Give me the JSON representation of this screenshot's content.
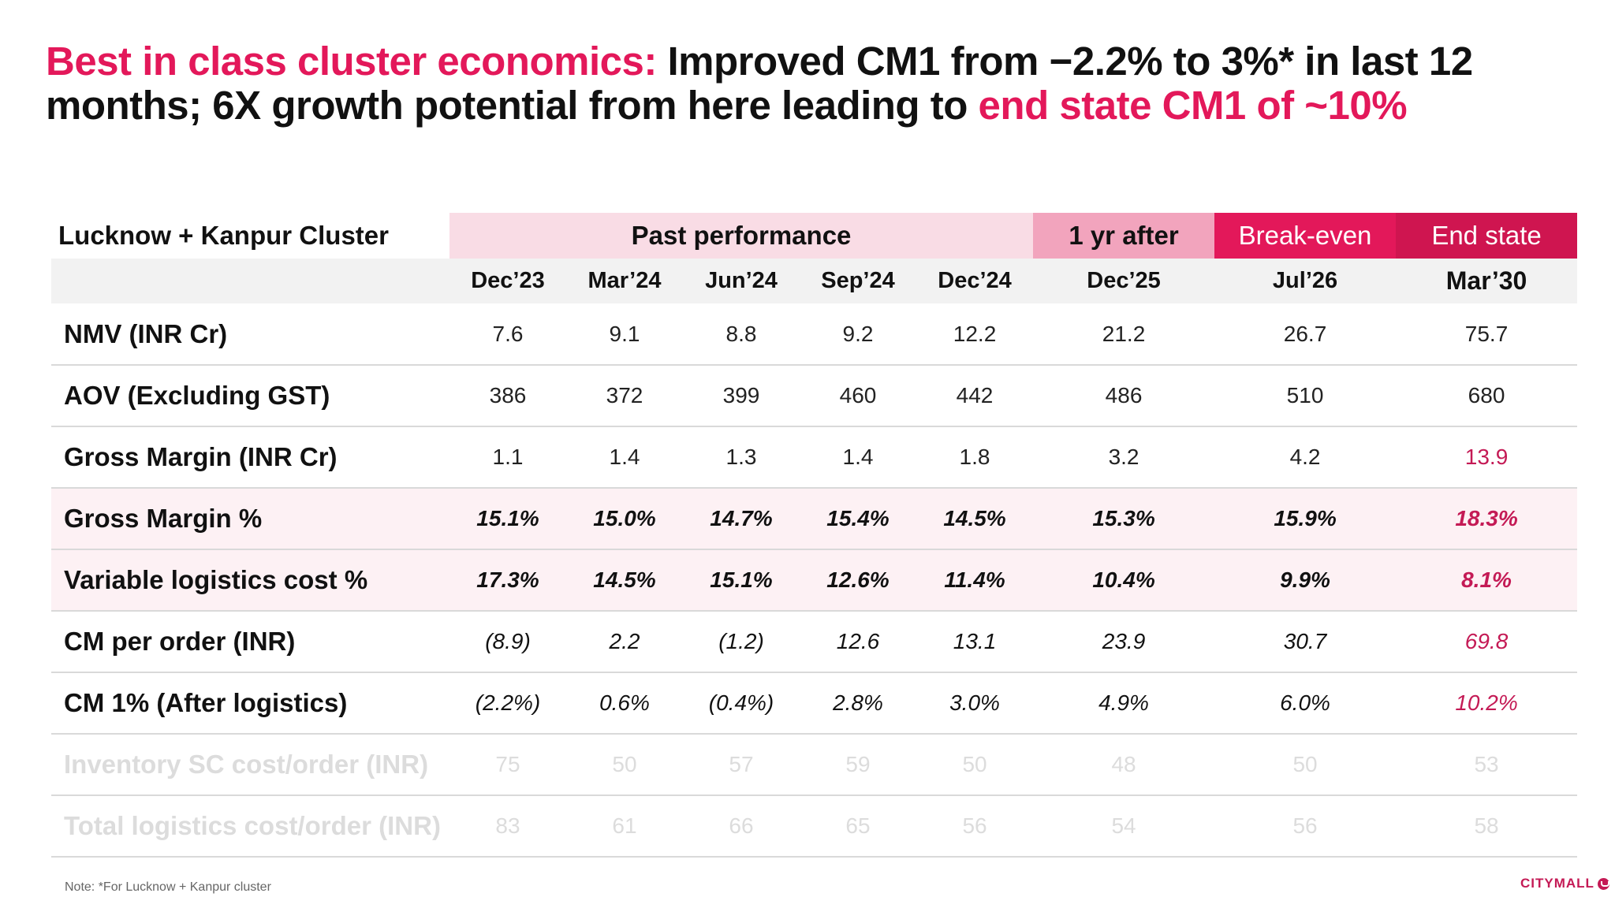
{
  "title": {
    "part1_accent": "Best in class cluster economics:",
    "part2": " Improved CM1 from −2.2% to 3%* in last 12 months; 6X growth potential from here leading to ",
    "part3_accent": "end state CM1 of ~10%"
  },
  "table": {
    "cluster_label": "Lucknow + Kanpur Cluster",
    "group_headers": {
      "past": "Past performance",
      "one_year": "1 yr after",
      "break_even": "Break-even",
      "end_state": "End state"
    },
    "periods": [
      "Dec’23",
      "Mar’24",
      "Jun’24",
      "Sep’24",
      "Dec’24",
      "Dec’25",
      "Jul’26",
      "Mar’30"
    ],
    "rows": [
      {
        "label": "NMV (INR Cr)",
        "values": [
          "7.6",
          "9.1",
          "8.8",
          "9.2",
          "12.2",
          "21.2",
          "26.7",
          "75.7"
        ]
      },
      {
        "label": "AOV (Excluding GST)",
        "values": [
          "386",
          "372",
          "399",
          "460",
          "442",
          "486",
          "510",
          "680"
        ]
      },
      {
        "label": "Gross Margin (INR Cr)",
        "values": [
          "1.1",
          "1.4",
          "1.3",
          "1.4",
          "1.8",
          "3.2",
          "4.2",
          "13.9"
        ]
      },
      {
        "label": "Gross Margin %",
        "values": [
          "15.1%",
          "15.0%",
          "14.7%",
          "15.4%",
          "14.5%",
          "15.3%",
          "15.9%",
          "18.3%"
        ]
      },
      {
        "label": "Variable logistics cost %",
        "values": [
          "17.3%",
          "14.5%",
          "15.1%",
          "12.6%",
          "11.4%",
          "10.4%",
          "9.9%",
          "8.1%"
        ]
      },
      {
        "label": "CM per order (INR)",
        "values": [
          "(8.9)",
          "2.2",
          "(1.2)",
          "12.6",
          "13.1",
          "23.9",
          "30.7",
          "69.8"
        ]
      },
      {
        "label": "CM 1% (After logistics)",
        "values": [
          "(2.2%)",
          "0.6%",
          "(0.4%)",
          "2.8%",
          "3.0%",
          "4.9%",
          "6.0%",
          "10.2%"
        ]
      },
      {
        "label": "Inventory SC cost/order (INR)",
        "values": [
          "75",
          "50",
          "57",
          "59",
          "50",
          "48",
          "50",
          "53"
        ]
      },
      {
        "label": "Total logistics cost/order (INR)",
        "values": [
          "83",
          "61",
          "66",
          "65",
          "56",
          "54",
          "56",
          "58"
        ]
      }
    ]
  },
  "note": "Note: *For Lucknow + Kanpur cluster",
  "logo": {
    "text": "CITYMALL"
  },
  "colors": {
    "accent": "#e3185a",
    "accent_dark": "#cf1550",
    "past_bg": "#f9dce5",
    "one_year_bg": "#f2a4bd",
    "highlight_text": "#c41a55",
    "pink_row_bg": "#fdf1f4",
    "faded_text": "#dcdcdc"
  }
}
